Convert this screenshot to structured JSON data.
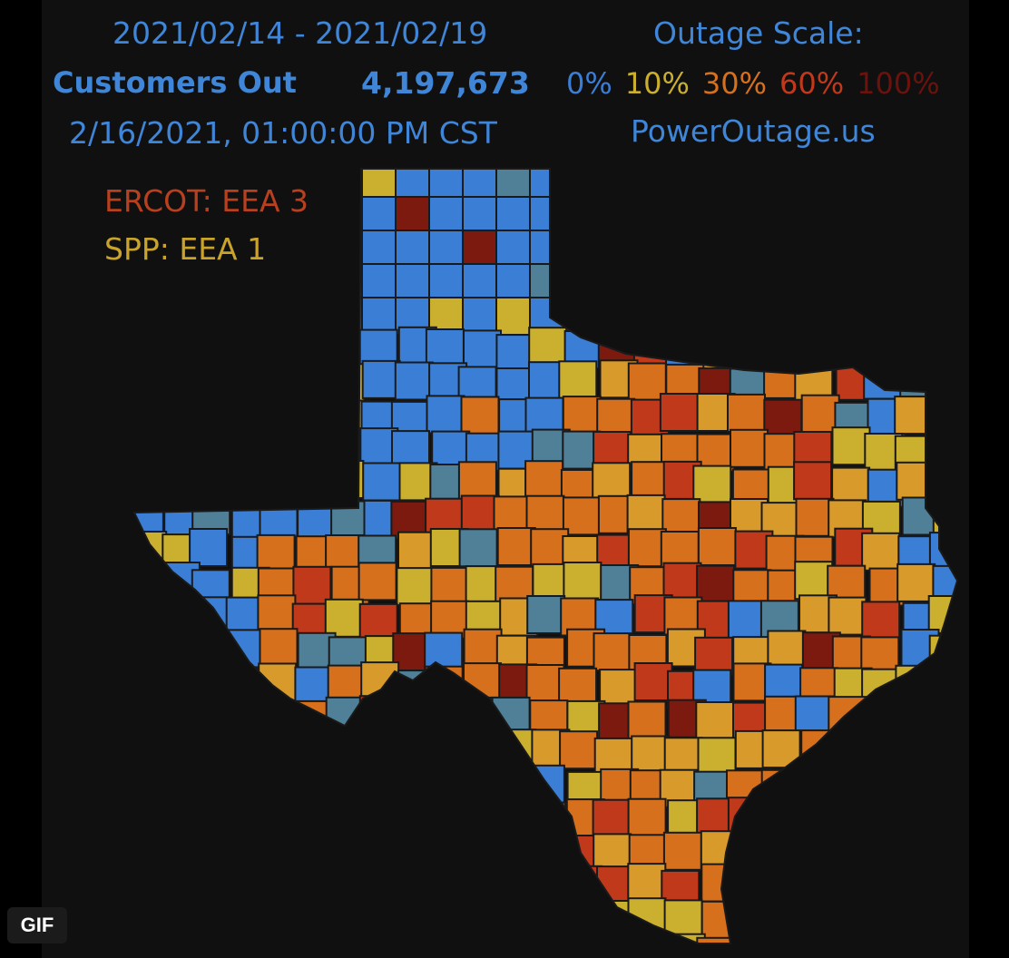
{
  "header": {
    "date_range": "2021/02/14 - 2021/02/19",
    "customers_label": "Customers Out",
    "customers_value": "4,197,673",
    "timestamp": "2/16/2021, 01:00:00 PM CST",
    "scale_title": "Outage Scale:",
    "site": "PowerOutage.us"
  },
  "scale": [
    {
      "label": "0%",
      "color": "#3a7fd5"
    },
    {
      "label": "10%",
      "color": "#cbb030"
    },
    {
      "label": "30%",
      "color": "#d6701c"
    },
    {
      "label": "60%",
      "color": "#c0391a"
    },
    {
      "label": "100%",
      "color": "#6b120c"
    }
  ],
  "alerts": {
    "ercot": "ERCOT: EEA 3",
    "spp": "SPP: EEA 1"
  },
  "badge": {
    "label": "GIF"
  },
  "colors": {
    "background": "#101010",
    "text_blue": "#3f86d8",
    "county_border": "#1a1a1a"
  }
}
